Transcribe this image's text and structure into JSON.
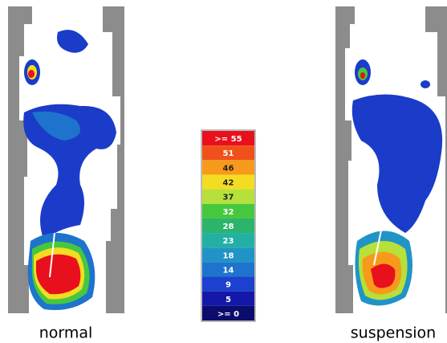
{
  "panels": [
    {
      "label": "normal"
    },
    {
      "label": "suspension"
    }
  ],
  "legend": {
    "entries": [
      {
        "label": ">= 55",
        "color": "#e8101c"
      },
      {
        "label": "51",
        "color": "#f0501a"
      },
      {
        "label": "46",
        "color": "#f79a1c"
      },
      {
        "label": "42",
        "color": "#f3dc22"
      },
      {
        "label": "37",
        "color": "#b6e03a"
      },
      {
        "label": "32",
        "color": "#46c83e"
      },
      {
        "label": "28",
        "color": "#2cb46a"
      },
      {
        "label": "23",
        "color": "#22b0a4"
      },
      {
        "label": "18",
        "color": "#2094c6"
      },
      {
        "label": "14",
        "color": "#1e74cc"
      },
      {
        "label": "9",
        "color": "#1c40d0"
      },
      {
        "label": "5",
        "color": "#1418a8"
      },
      {
        "label": ">= 0",
        "color": "#0c0c6c"
      }
    ]
  }
}
